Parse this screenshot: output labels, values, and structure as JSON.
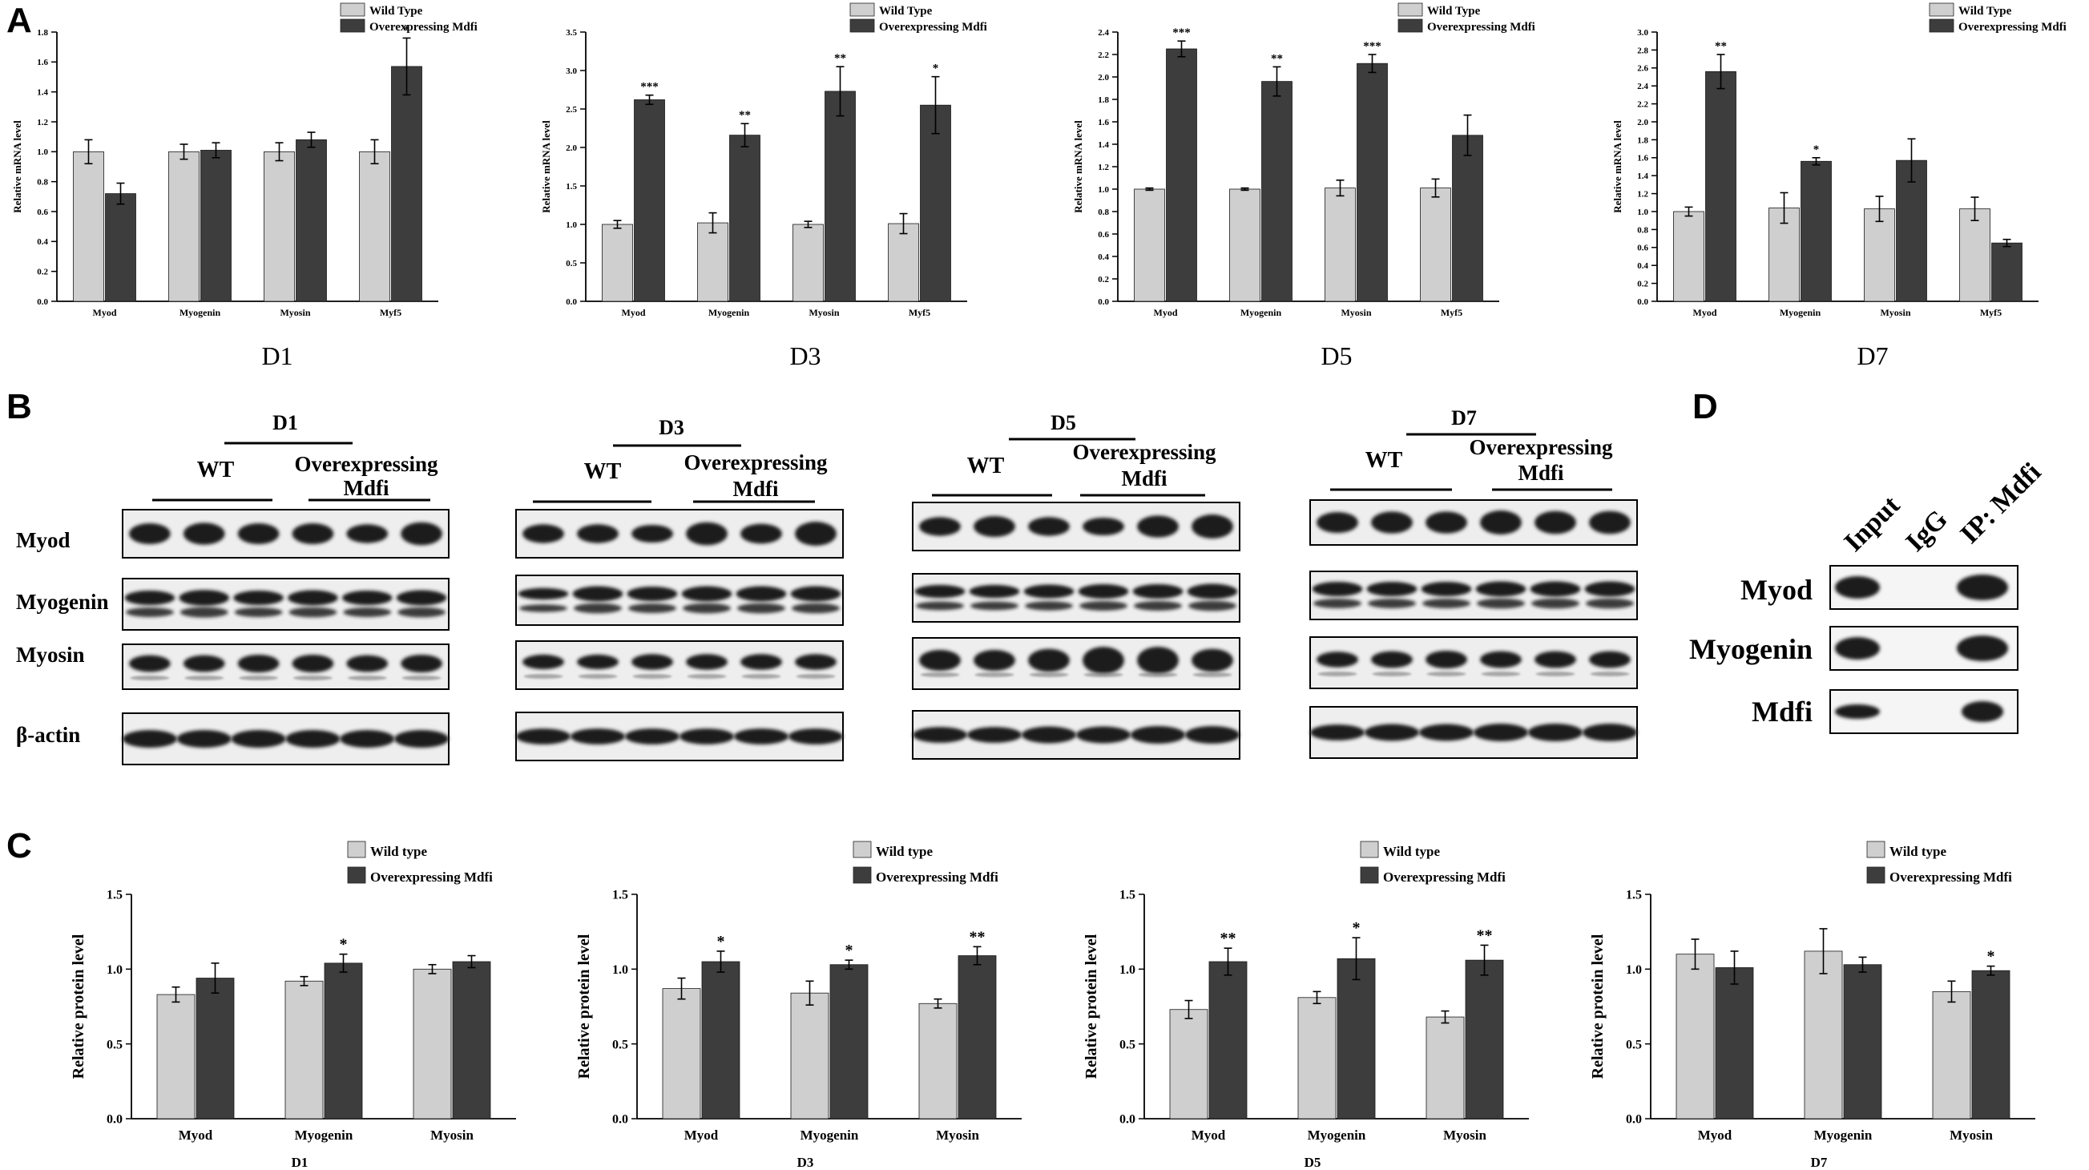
{
  "panel_labels": [
    "A",
    "B",
    "C",
    "D"
  ],
  "colors": {
    "wild_type": "#cfcfcf",
    "overexpressing": "#3d3d3d",
    "blot_band": "#1a1a1a"
  },
  "chart_data": [
    {
      "panel": "A",
      "type": "bar",
      "caption": "D1",
      "ylabel": "Relative mRNA level",
      "categories": [
        "Myod",
        "Myogenin",
        "Myosin",
        "Myf5"
      ],
      "ylim": [
        0,
        1.8
      ],
      "yticks": [
        "0.0",
        "0.2",
        "0.4",
        "0.6",
        "0.8",
        "1.0",
        "1.2",
        "1.4",
        "1.6",
        "1.8"
      ],
      "series": [
        {
          "name": "Wild Type",
          "values": [
            1.0,
            1.0,
            1.0,
            1.0
          ],
          "errors": [
            0.08,
            0.05,
            0.06,
            0.08
          ]
        },
        {
          "name": "Overexpressing Mdfi",
          "values": [
            0.72,
            1.01,
            1.08,
            1.57
          ],
          "errors": [
            0.07,
            0.05,
            0.05,
            0.19
          ]
        }
      ],
      "significance": [
        "",
        "",
        "",
        "*"
      ]
    },
    {
      "panel": "A",
      "type": "bar",
      "caption": "D3",
      "ylabel": "Relative mRNA level",
      "categories": [
        "Myod",
        "Myogenin",
        "Myosin",
        "Myf5"
      ],
      "ylim": [
        0,
        3.5
      ],
      "yticks": [
        "0.0",
        "0.5",
        "1.0",
        "1.5",
        "2.0",
        "2.5",
        "3.0",
        "3.5"
      ],
      "series": [
        {
          "name": "Wild Type",
          "values": [
            1.0,
            1.02,
            1.0,
            1.01
          ],
          "errors": [
            0.05,
            0.13,
            0.04,
            0.13
          ]
        },
        {
          "name": "Overexpressing Mdfi",
          "values": [
            2.62,
            2.16,
            2.73,
            2.55
          ],
          "errors": [
            0.06,
            0.15,
            0.32,
            0.37
          ]
        }
      ],
      "significance": [
        "***",
        "**",
        "**",
        "*"
      ]
    },
    {
      "panel": "A",
      "type": "bar",
      "caption": "D5",
      "ylabel": "Relative mRNA level",
      "categories": [
        "Myod",
        "Myogenin",
        "Myosin",
        "Myf5"
      ],
      "ylim": [
        0,
        2.4
      ],
      "yticks": [
        "0.0",
        "0.2",
        "0.4",
        "0.6",
        "0.8",
        "1.0",
        "1.2",
        "1.4",
        "1.6",
        "1.8",
        "2.0",
        "2.2",
        "2.4"
      ],
      "series": [
        {
          "name": "Wild Type",
          "values": [
            1.0,
            1.0,
            1.01,
            1.01
          ],
          "errors": [
            0.01,
            0.01,
            0.07,
            0.08
          ]
        },
        {
          "name": "Overexpressing Mdfi",
          "values": [
            2.25,
            1.96,
            2.12,
            1.48
          ],
          "errors": [
            0.07,
            0.13,
            0.08,
            0.18
          ]
        }
      ],
      "significance": [
        "***",
        "**",
        "***",
        ""
      ]
    },
    {
      "panel": "A",
      "type": "bar",
      "caption": "D7",
      "ylabel": "Relative mRNA level",
      "categories": [
        "Myod",
        "Myogenin",
        "Myosin",
        "Myf5"
      ],
      "ylim": [
        0,
        3.0
      ],
      "yticks": [
        "0.0",
        "0.2",
        "0.4",
        "0.6",
        "0.8",
        "1.0",
        "1.2",
        "1.4",
        "1.6",
        "1.8",
        "2.0",
        "2.2",
        "2.4",
        "2.6",
        "2.8",
        "3.0"
      ],
      "series": [
        {
          "name": "Wild Type",
          "values": [
            1.0,
            1.04,
            1.03,
            1.03
          ],
          "errors": [
            0.05,
            0.17,
            0.14,
            0.13
          ]
        },
        {
          "name": "Overexpressing Mdfi",
          "values": [
            2.56,
            1.56,
            1.57,
            0.65
          ],
          "errors": [
            0.19,
            0.04,
            0.24,
            0.04
          ]
        }
      ],
      "significance": [
        "**",
        "*",
        "",
        ""
      ]
    },
    {
      "panel": "C",
      "type": "bar",
      "caption": "D1",
      "ylabel": "Relative protein level",
      "categories": [
        "Myod",
        "Myogenin",
        "Myosin"
      ],
      "ylim": [
        0,
        1.5
      ],
      "yticks": [
        "0.0",
        "0.5",
        "1.0",
        "1.5"
      ],
      "series": [
        {
          "name": "Wild type",
          "values": [
            0.83,
            0.92,
            1.0
          ],
          "errors": [
            0.05,
            0.03,
            0.03
          ]
        },
        {
          "name": "Overexpressing Mdfi",
          "values": [
            0.94,
            1.04,
            1.05
          ],
          "errors": [
            0.1,
            0.06,
            0.04
          ]
        }
      ],
      "significance": [
        "",
        "*",
        ""
      ]
    },
    {
      "panel": "C",
      "type": "bar",
      "caption": "D3",
      "ylabel": "Relative protein level",
      "categories": [
        "Myod",
        "Myogenin",
        "Myosin"
      ],
      "ylim": [
        0,
        1.5
      ],
      "yticks": [
        "0.0",
        "0.5",
        "1.0",
        "1.5"
      ],
      "series": [
        {
          "name": "Wild type",
          "values": [
            0.87,
            0.84,
            0.77
          ],
          "errors": [
            0.07,
            0.08,
            0.03
          ]
        },
        {
          "name": "Overexpressing Mdfi",
          "values": [
            1.05,
            1.03,
            1.09
          ],
          "errors": [
            0.07,
            0.03,
            0.06
          ]
        }
      ],
      "significance": [
        "*",
        "*",
        "**"
      ]
    },
    {
      "panel": "C",
      "type": "bar",
      "caption": "D5",
      "ylabel": "Relative protein level",
      "categories": [
        "Myod",
        "Myogenin",
        "Myosin"
      ],
      "ylim": [
        0,
        1.5
      ],
      "yticks": [
        "0.0",
        "0.5",
        "1.0",
        "1.5"
      ],
      "series": [
        {
          "name": "Wild type",
          "values": [
            0.73,
            0.81,
            0.68
          ],
          "errors": [
            0.06,
            0.04,
            0.04
          ]
        },
        {
          "name": "Overexpressing Mdfi",
          "values": [
            1.05,
            1.07,
            1.06
          ],
          "errors": [
            0.09,
            0.14,
            0.1
          ]
        }
      ],
      "significance": [
        "**",
        "*",
        "**"
      ]
    },
    {
      "panel": "C",
      "type": "bar",
      "caption": "D7",
      "ylabel": "Relative protein level",
      "categories": [
        "Myod",
        "Myogenin",
        "Myosin"
      ],
      "ylim": [
        0,
        1.5
      ],
      "yticks": [
        "0.0",
        "0.5",
        "1.0",
        "1.5"
      ],
      "series": [
        {
          "name": "Wild type",
          "values": [
            1.1,
            1.12,
            0.85
          ],
          "errors": [
            0.1,
            0.15,
            0.07
          ]
        },
        {
          "name": "Overexpressing Mdfi",
          "values": [
            1.01,
            1.03,
            0.99
          ],
          "errors": [
            0.11,
            0.05,
            0.03
          ]
        }
      ],
      "significance": [
        "",
        "",
        "*"
      ]
    }
  ],
  "western_blots": [
    {
      "day": "D1",
      "wt_label": "WT",
      "oe_label_1": "Overexpressing",
      "oe_label_2": "Mdfi",
      "lanes": 6
    },
    {
      "day": "D3",
      "wt_label": "WT",
      "oe_label_1": "Overexpressing",
      "oe_label_2": "Mdfi",
      "lanes": 6
    },
    {
      "day": "D5",
      "wt_label": "WT",
      "oe_label_1": "Overexpressing",
      "oe_label_2": "Mdfi",
      "lanes": 6
    },
    {
      "day": "D7",
      "wt_label": "WT",
      "oe_label_1": "Overexpressing",
      "oe_label_2": "Mdfi",
      "lanes": 6
    }
  ],
  "blot_rows": [
    "Myod",
    "Myogenin",
    "Myosin",
    "β-actin"
  ],
  "co_ip": {
    "lanes": [
      "Input",
      "IgG",
      "IP: Mdfi"
    ],
    "rows": [
      "Myod",
      "Myogenin",
      "Mdfi"
    ]
  }
}
